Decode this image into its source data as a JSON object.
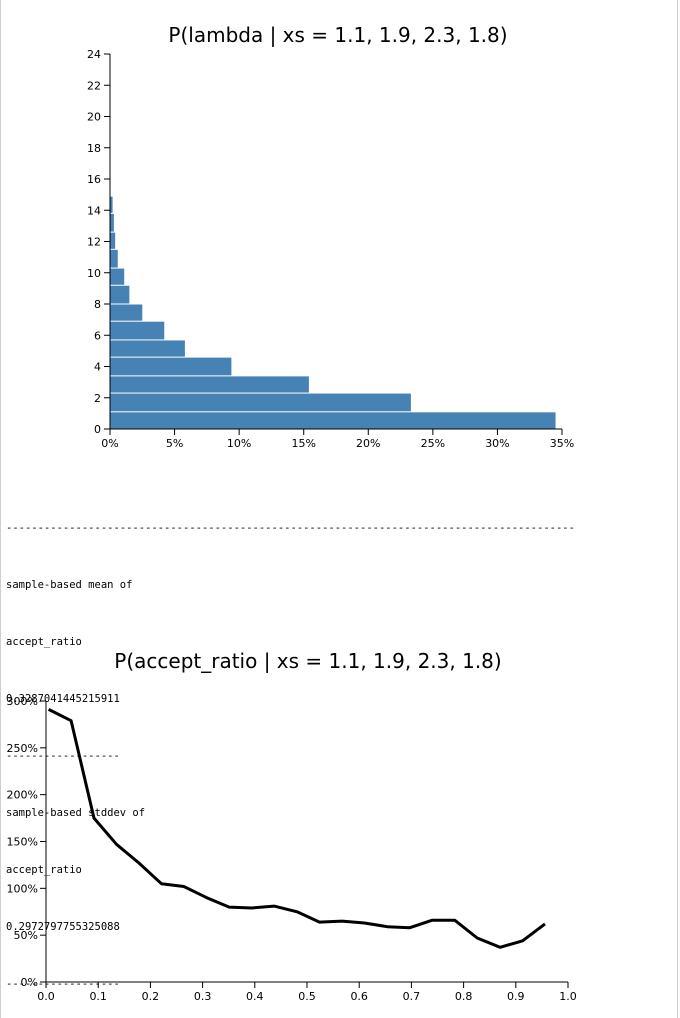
{
  "chart_data": [
    {
      "type": "bar",
      "orientation": "horizontal",
      "title": "P(lambda | xs = 1.1, 1.9, 2.3, 1.8)",
      "xlabel": "",
      "ylabel": "",
      "xlim": [
        0,
        35
      ],
      "ylim": [
        0,
        24
      ],
      "x_tick_labels": [
        "0%",
        "5%",
        "10%",
        "15%",
        "20%",
        "25%",
        "30%",
        "35%"
      ],
      "y_tick_labels": [
        "0",
        "2",
        "4",
        "6",
        "8",
        "10",
        "12",
        "14",
        "16",
        "18",
        "20",
        "22",
        "24"
      ],
      "bins": [
        {
          "y0": 0,
          "y1": 1.1,
          "value": 34.5
        },
        {
          "y0": 1.1,
          "y1": 2.3,
          "value": 23.3
        },
        {
          "y0": 2.3,
          "y1": 3.4,
          "value": 15.4
        },
        {
          "y0": 3.4,
          "y1": 4.6,
          "value": 9.4
        },
        {
          "y0": 4.6,
          "y1": 5.7,
          "value": 5.8
        },
        {
          "y0": 5.7,
          "y1": 6.9,
          "value": 4.2
        },
        {
          "y0": 6.9,
          "y1": 8.0,
          "value": 2.5
        },
        {
          "y0": 8.0,
          "y1": 9.2,
          "value": 1.5
        },
        {
          "y0": 9.2,
          "y1": 10.3,
          "value": 1.1
        },
        {
          "y0": 10.3,
          "y1": 11.5,
          "value": 0.6
        },
        {
          "y0": 11.5,
          "y1": 12.6,
          "value": 0.4
        },
        {
          "y0": 12.6,
          "y1": 13.8,
          "value": 0.3
        },
        {
          "y0": 13.8,
          "y1": 14.9,
          "value": 0.2
        }
      ],
      "grid": false,
      "bar_color": "#4682b4"
    },
    {
      "type": "line",
      "title": "P(accept_ratio | xs = 1.1, 1.9, 2.3, 1.8)",
      "xlabel": "",
      "ylabel": "",
      "xlim": [
        0,
        1
      ],
      "ylim": [
        0,
        300
      ],
      "x_tick_labels": [
        "0.0",
        "0.1",
        "0.2",
        "0.3",
        "0.4",
        "0.5",
        "0.6",
        "0.7",
        "0.8",
        "0.9",
        "1.0"
      ],
      "y_tick_labels": [
        "0%",
        "50%",
        "100%",
        "150%",
        "200%",
        "250%",
        "300%"
      ],
      "x": [
        0.005,
        0.048,
        0.092,
        0.135,
        0.178,
        0.221,
        0.264,
        0.308,
        0.351,
        0.394,
        0.437,
        0.481,
        0.524,
        0.567,
        0.61,
        0.654,
        0.697,
        0.74,
        0.783,
        0.826,
        0.87,
        0.913,
        0.956
      ],
      "y": [
        291,
        279,
        175,
        147,
        127,
        105,
        102,
        90,
        80,
        79,
        81,
        75,
        64,
        65,
        63,
        59,
        58,
        66,
        66,
        47,
        37,
        44,
        62
      ],
      "grid": false,
      "line_color": "#000000"
    }
  ],
  "text_output": [
    "------------------------------------------------------------------------------------------",
    "sample-based mean of",
    "accept_ratio",
    "0.3287041445215911",
    "------------------",
    "sample-based stddev of",
    "accept_ratio",
    "0.2972797755325088",
    "------------------"
  ]
}
